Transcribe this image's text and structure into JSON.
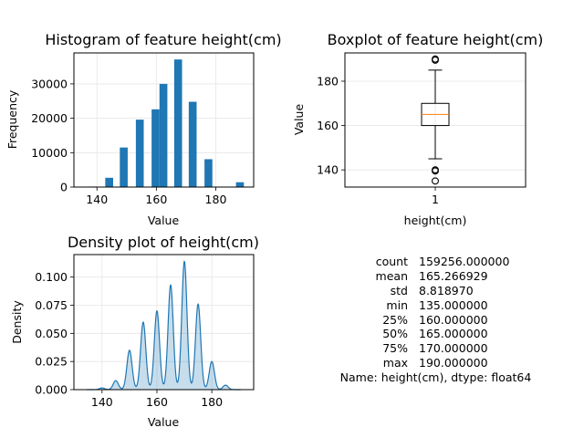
{
  "chart_data": [
    {
      "type": "bar",
      "title": "Histogram of feature height(cm)",
      "xlabel": "Value",
      "ylabel": "Frequency",
      "xlim": [
        132.25,
        192.75
      ],
      "ylim": [
        0,
        39000
      ],
      "xticks": [
        140,
        160,
        180
      ],
      "yticks": [
        0,
        10000,
        20000,
        30000
      ],
      "grid": true,
      "bins": [
        {
          "x0": 137.5,
          "x1": 140.15,
          "value": 150
        },
        {
          "x0": 142.8,
          "x1": 145.45,
          "value": 2700
        },
        {
          "x0": 147.7,
          "x1": 150.35,
          "value": 11500
        },
        {
          "x0": 153.1,
          "x1": 155.75,
          "value": 19600
        },
        {
          "x0": 158.4,
          "x1": 161.05,
          "value": 22600
        },
        {
          "x0": 161.05,
          "x1": 163.7,
          "value": 30000
        },
        {
          "x0": 166.0,
          "x1": 168.65,
          "value": 37100
        },
        {
          "x0": 170.9,
          "x1": 173.55,
          "value": 24800
        },
        {
          "x0": 176.2,
          "x1": 178.85,
          "value": 8100
        },
        {
          "x0": 186.8,
          "x1": 189.45,
          "value": 1400
        }
      ],
      "color": "#1f77b4"
    },
    {
      "type": "boxplot",
      "title": "Boxplot of feature height(cm)",
      "xlabel": "height(cm)",
      "ylabel": "Value",
      "categories": [
        "1"
      ],
      "ylim": [
        132.25,
        192.75
      ],
      "yticks": [
        140,
        160,
        180
      ],
      "grid": true,
      "box": {
        "whisker_low": 145,
        "q1": 160,
        "median": 165,
        "q3": 170,
        "whisker_high": 185
      },
      "outliers": [
        135,
        139.5,
        140,
        189.5,
        190
      ],
      "median_color": "#ff7f0e"
    },
    {
      "type": "area",
      "title": "Density plot of height(cm)",
      "xlabel": "Value",
      "ylabel": "Density",
      "xlim": [
        129.75,
        195.25
      ],
      "ylim": [
        0,
        0.12
      ],
      "xticks": [
        140,
        160,
        180
      ],
      "yticks": [
        0.0,
        0.025,
        0.05,
        0.075,
        0.1
      ],
      "ytick_labels": [
        "0.000",
        "0.025",
        "0.050",
        "0.075",
        "0.100"
      ],
      "grid": true,
      "peaks": [
        {
          "x": 140,
          "y": 0.0015
        },
        {
          "x": 145,
          "y": 0.008
        },
        {
          "x": 150,
          "y": 0.035
        },
        {
          "x": 155,
          "y": 0.06
        },
        {
          "x": 160,
          "y": 0.07
        },
        {
          "x": 165,
          "y": 0.093
        },
        {
          "x": 170,
          "y": 0.114
        },
        {
          "x": 175,
          "y": 0.076
        },
        {
          "x": 180,
          "y": 0.025
        },
        {
          "x": 185,
          "y": 0.004
        }
      ],
      "color": "#1f77b4"
    }
  ],
  "summary": {
    "rows": [
      {
        "key": "count",
        "value": "159256.000000"
      },
      {
        "key": "mean",
        "value": "165.266929"
      },
      {
        "key": "std",
        "value": "8.818970"
      },
      {
        "key": "min",
        "value": "135.000000"
      },
      {
        "key": "25%",
        "value": "160.000000"
      },
      {
        "key": "50%",
        "value": "165.000000"
      },
      {
        "key": "75%",
        "value": "170.000000"
      },
      {
        "key": "max",
        "value": "190.000000"
      }
    ],
    "name_line": "Name: height(cm), dtype: float64"
  }
}
